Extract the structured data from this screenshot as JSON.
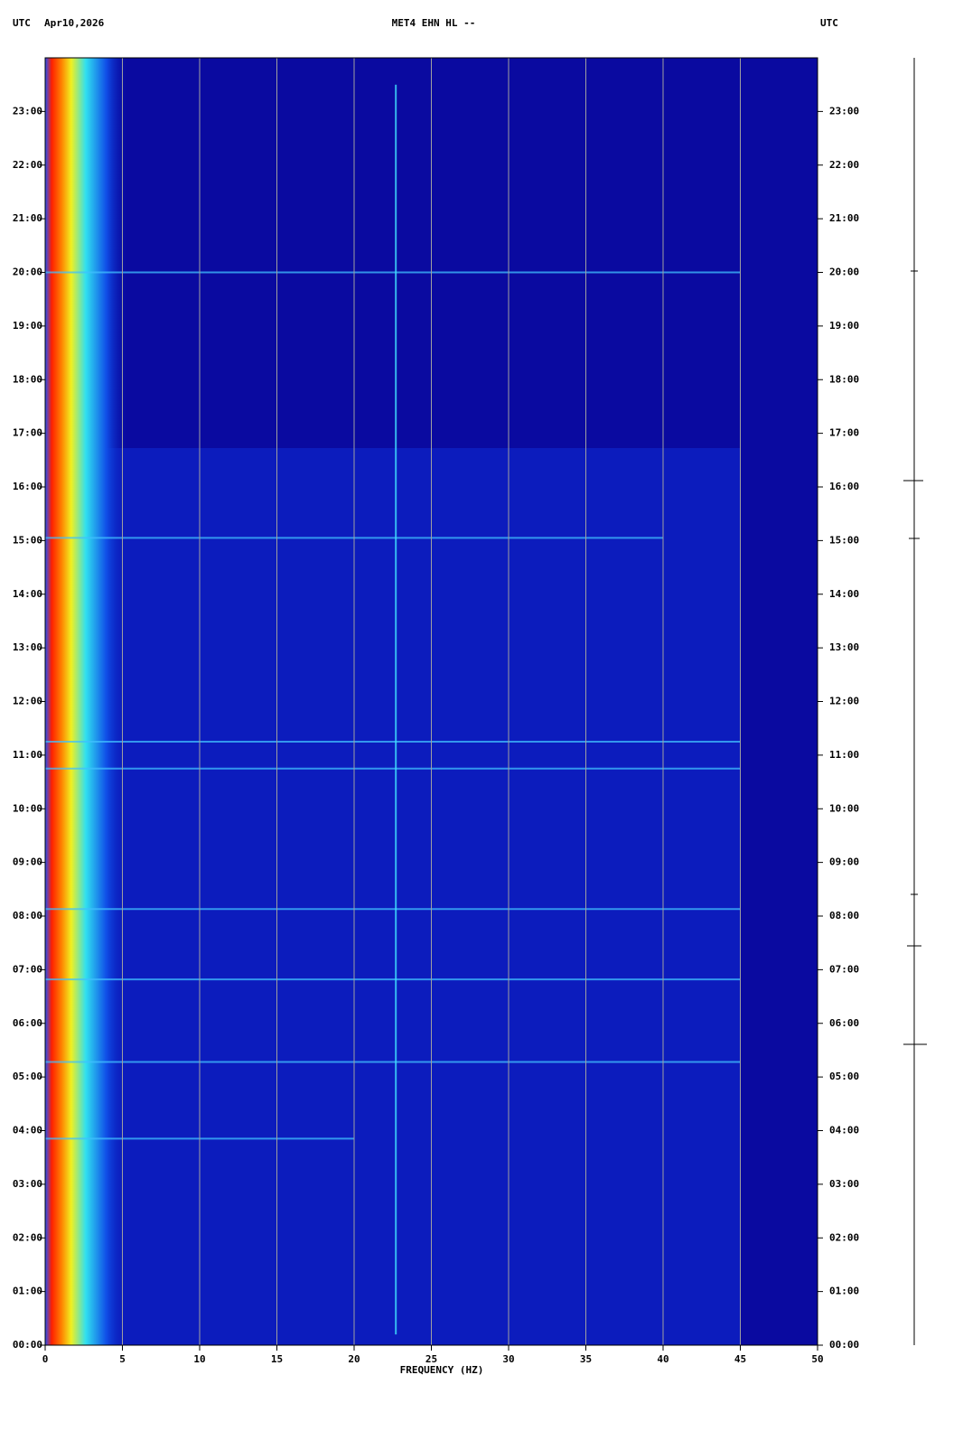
{
  "chart_data": {
    "type": "spectrogram",
    "header_left": "UTC",
    "date": "Apr10,2026",
    "title": "MET4 EHN HL --",
    "header_right": "UTC",
    "xlabel": "FREQUENCY (HZ)",
    "xlim": [
      0,
      50
    ],
    "xticks": [
      0,
      5,
      10,
      15,
      20,
      25,
      30,
      35,
      40,
      45,
      50
    ],
    "ylim": [
      0,
      24
    ],
    "yticks": [
      {
        "value": 0,
        "label": "00:00"
      },
      {
        "value": 1,
        "label": "01:00"
      },
      {
        "value": 2,
        "label": "02:00"
      },
      {
        "value": 3,
        "label": "03:00"
      },
      {
        "value": 4,
        "label": "04:00"
      },
      {
        "value": 5,
        "label": "05:00"
      },
      {
        "value": 6,
        "label": "06:00"
      },
      {
        "value": 7,
        "label": "07:00"
      },
      {
        "value": 8,
        "label": "08:00"
      },
      {
        "value": 9,
        "label": "09:00"
      },
      {
        "value": 10,
        "label": "10:00"
      },
      {
        "value": 11,
        "label": "11:00"
      },
      {
        "value": 12,
        "label": "12:00"
      },
      {
        "value": 13,
        "label": "13:00"
      },
      {
        "value": 14,
        "label": "14:00"
      },
      {
        "value": 15,
        "label": "15:00"
      },
      {
        "value": 16,
        "label": "16:00"
      },
      {
        "value": 17,
        "label": "17:00"
      },
      {
        "value": 18,
        "label": "18:00"
      },
      {
        "value": 19,
        "label": "19:00"
      },
      {
        "value": 20,
        "label": "20:00"
      },
      {
        "value": 21,
        "label": "21:00"
      },
      {
        "value": 22,
        "label": "22:00"
      },
      {
        "value": 23,
        "label": "23:00"
      }
    ],
    "grid": true,
    "events": [
      {
        "time": 3.85,
        "fmax": 20
      },
      {
        "time": 5.28,
        "fmax": 45
      },
      {
        "time": 6.82,
        "fmax": 45
      },
      {
        "time": 8.13,
        "fmax": 45
      },
      {
        "time": 10.75,
        "fmax": 45
      },
      {
        "time": 11.25,
        "fmax": 45
      },
      {
        "time": 15.05,
        "fmax": 40
      },
      {
        "time": 20.0,
        "fmax": 45
      }
    ],
    "tone": {
      "freq": 22.7,
      "tmin": 0.2,
      "tmax": 23.5
    }
  }
}
